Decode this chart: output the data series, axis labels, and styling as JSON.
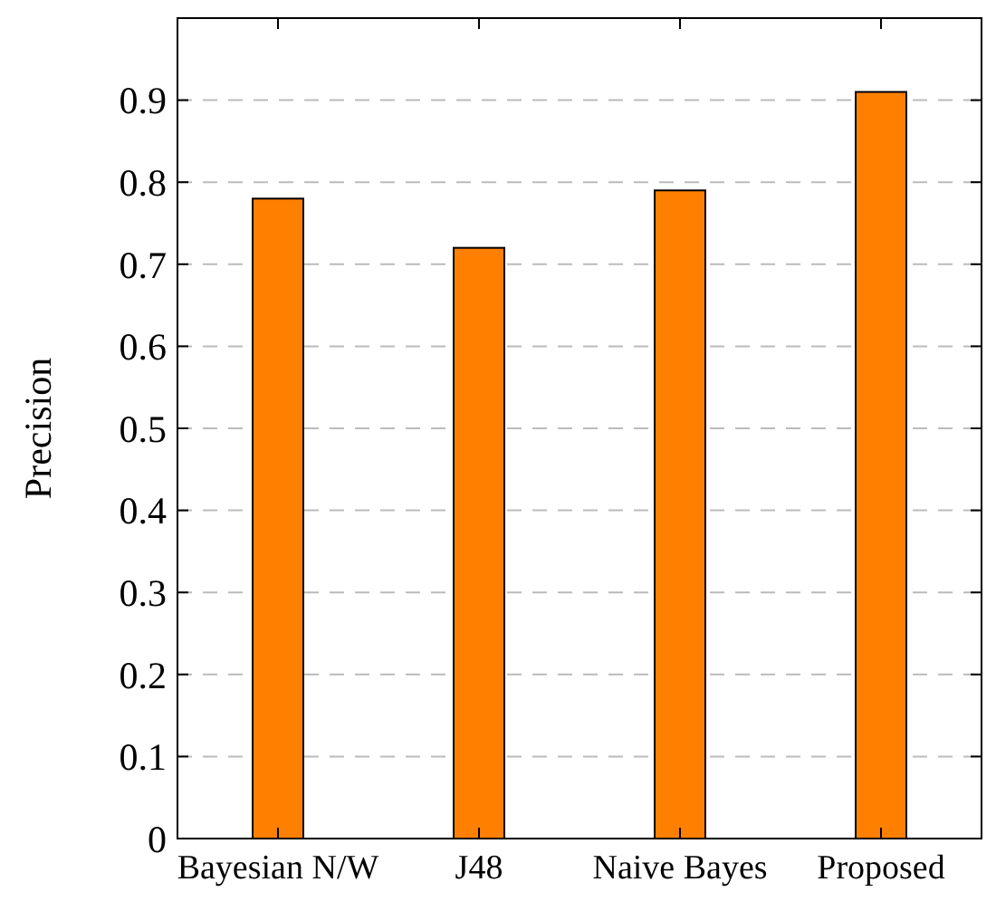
{
  "chart_data": {
    "type": "bar",
    "ylabel": "Precision",
    "categories": [
      "Bayesian N/W",
      "J48",
      "Naive Bayes",
      "Proposed"
    ],
    "values": [
      0.78,
      0.72,
      0.79,
      0.91
    ],
    "color": "#ff8000",
    "ylim": [
      0,
      1
    ],
    "yticks": [
      0,
      0.1,
      0.2,
      0.3,
      0.4,
      0.5,
      0.6,
      0.7,
      0.8,
      0.9
    ],
    "grid": "y"
  }
}
